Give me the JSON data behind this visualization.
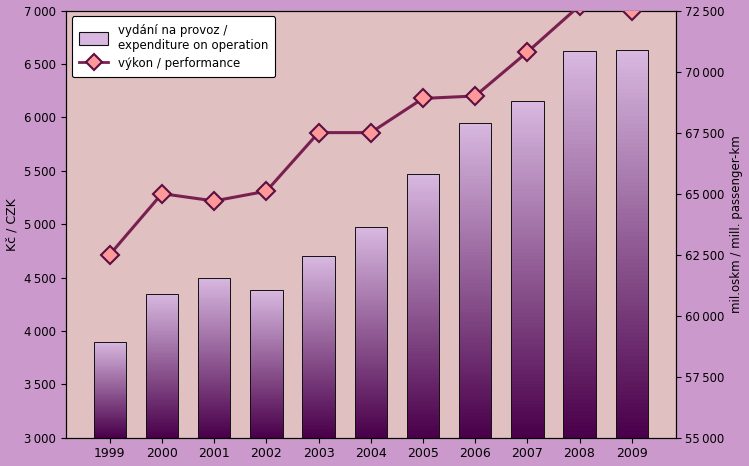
{
  "years": [
    1999,
    2000,
    2001,
    2002,
    2003,
    2004,
    2005,
    2006,
    2007,
    2008,
    2009
  ],
  "bar_values": [
    3900,
    4350,
    4500,
    4380,
    4700,
    4970,
    5470,
    5950,
    6150,
    6620,
    6630
  ],
  "line_values": [
    62500,
    65000,
    64700,
    65100,
    67500,
    67500,
    68900,
    69000,
    70800,
    72700,
    72500
  ],
  "bar_color_top": "#d8b8e0",
  "bar_color_bottom": "#4a004a",
  "bar_edge_color": "#111111",
  "line_color": "#7a2050",
  "marker_face_color": "#ff9999",
  "marker_edge_color": "#5a1040",
  "figure_bg": "#cc99cc",
  "axes_bg_color": "#e0c0c0",
  "left_ylabel": "Kč / CZK",
  "right_ylabel": "mil.oskm / mill. passenger-km",
  "ylim_left": [
    3000,
    7000
  ],
  "ylim_right": [
    55000,
    72500
  ],
  "yticks_left": [
    3000,
    3500,
    4000,
    4500,
    5000,
    5500,
    6000,
    6500,
    7000
  ],
  "yticks_right": [
    55000,
    57500,
    60000,
    62500,
    65000,
    67500,
    70000,
    72500
  ],
  "legend_bar_label1": "vydání na provoz /",
  "legend_bar_label2": "expenditure on operation",
  "legend_line_label": "výkon / performance"
}
